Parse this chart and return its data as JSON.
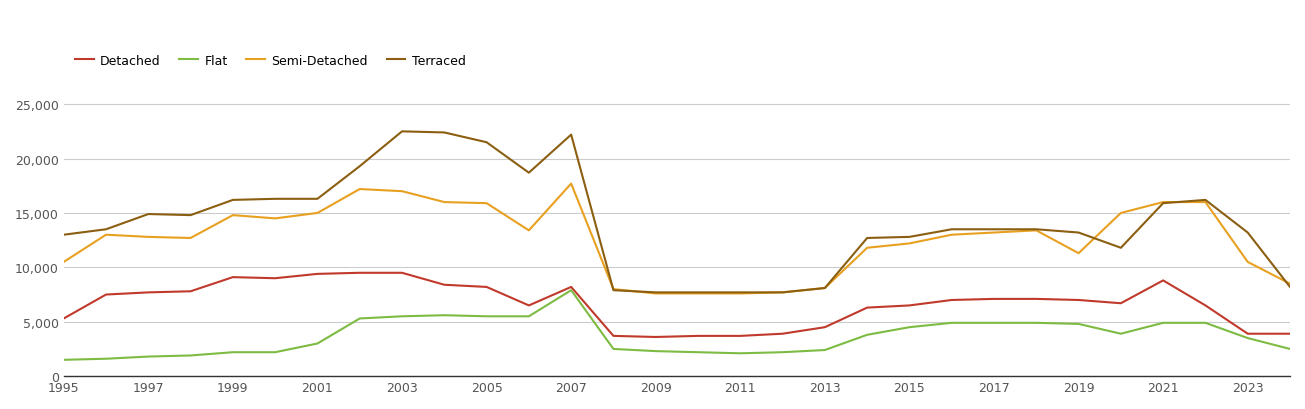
{
  "years": [
    1995,
    1996,
    1997,
    1998,
    1999,
    2000,
    2001,
    2002,
    2003,
    2004,
    2005,
    2006,
    2007,
    2008,
    2009,
    2010,
    2011,
    2012,
    2013,
    2014,
    2015,
    2016,
    2017,
    2018,
    2019,
    2020,
    2021,
    2022,
    2023,
    2024
  ],
  "detached": [
    5300,
    7500,
    7700,
    7800,
    9100,
    9000,
    9400,
    9500,
    9500,
    8400,
    8200,
    6500,
    8200,
    3700,
    3600,
    3700,
    3700,
    3900,
    4500,
    6300,
    6500,
    7000,
    7100,
    7100,
    7000,
    6700,
    8800,
    6500,
    3900,
    3900
  ],
  "flat": [
    1500,
    1600,
    1800,
    1900,
    2200,
    2200,
    3000,
    5300,
    5500,
    5600,
    5500,
    5500,
    7900,
    2500,
    2300,
    2200,
    2100,
    2200,
    2400,
    3800,
    4500,
    4900,
    4900,
    4900,
    4800,
    3900,
    4900,
    4900,
    3500,
    2500
  ],
  "semi_detached": [
    10500,
    13000,
    12800,
    12700,
    14800,
    14500,
    15000,
    17200,
    17000,
    16000,
    15900,
    13400,
    17700,
    8000,
    7600,
    7600,
    7600,
    7700,
    8100,
    11800,
    12200,
    13000,
    13200,
    13400,
    11300,
    15000,
    16000,
    16000,
    10500,
    8500
  ],
  "terraced": [
    13000,
    13500,
    14900,
    14800,
    16200,
    16300,
    16300,
    19300,
    22500,
    22400,
    21500,
    18700,
    22200,
    7900,
    7700,
    7700,
    7700,
    7700,
    8100,
    12700,
    12800,
    13500,
    13500,
    13500,
    13200,
    11800,
    15900,
    16200,
    13200,
    8200
  ],
  "colors": {
    "detached": "#c0392b",
    "flat": "#7dbb42",
    "semi_detached": "#e8a020",
    "terraced": "#8b5e10"
  },
  "ylim": [
    0,
    26000
  ],
  "yticks": [
    0,
    5000,
    10000,
    15000,
    20000,
    25000
  ],
  "xtick_years": [
    1995,
    1997,
    1999,
    2001,
    2003,
    2005,
    2007,
    2009,
    2011,
    2013,
    2015,
    2017,
    2019,
    2021,
    2023
  ],
  "background_color": "#ffffff",
  "grid_color": "#cccccc",
  "linewidth": 1.5
}
